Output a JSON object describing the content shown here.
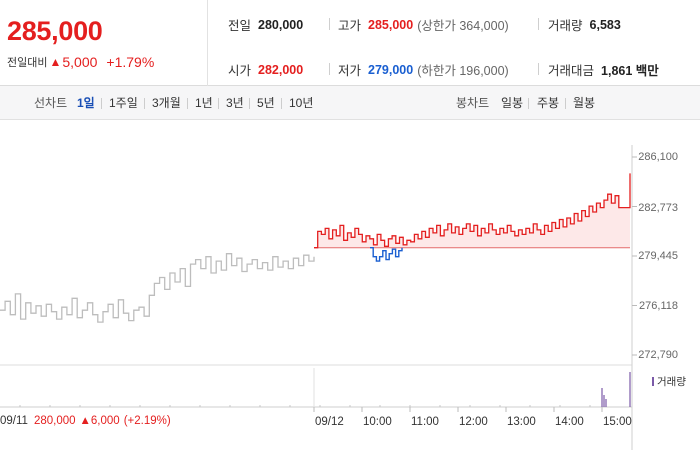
{
  "quote": {
    "current_price": "285,000",
    "change_label": "전일대비",
    "change_arrow": "▲",
    "change_value": "5,000",
    "change_percent": "+1.79%",
    "prev_close": {
      "label": "전일",
      "value": "280,000"
    },
    "high": {
      "label": "고가",
      "value": "285,000",
      "limit": "(상한가 364,000)"
    },
    "volume": {
      "label": "거래량",
      "value": "6,583"
    },
    "open": {
      "label": "시가",
      "value": "282,000"
    },
    "low": {
      "label": "저가",
      "value": "279,000",
      "limit": "(하한가 196,000)"
    },
    "trade_value": {
      "label": "거래대금",
      "value": "1,861 백만"
    }
  },
  "period_bar": {
    "line_label": "선차트",
    "line_options": [
      "1일",
      "1주일",
      "3개월",
      "1년",
      "3년",
      "5년",
      "10년"
    ],
    "active_line": "1일",
    "candle_label": "봉차트",
    "candle_options": [
      "일봉",
      "주봉",
      "월봉"
    ]
  },
  "colors": {
    "up": "#e41f1f",
    "down": "#1a5fd1",
    "prev_day": "#bdbdbd",
    "volume": "#7b5aa8"
  },
  "chart_data": {
    "type": "line",
    "title": "",
    "xlabel": "",
    "ylabel": "",
    "ylim": [
      272790,
      286100
    ],
    "y_ticks": [
      "286,100",
      "282,773",
      "279,445",
      "276,118",
      "272,790"
    ],
    "x_ticks": [
      "09/12",
      "10:00",
      "11:00",
      "12:00",
      "13:00",
      "14:00",
      "15:00"
    ],
    "baseline": 280000,
    "volume_legend": "거래량",
    "prev_day_footer": {
      "date": "09/11",
      "price": "280,000",
      "arrow": "▲",
      "change": "6,000",
      "percent": "(+2.19%)"
    },
    "series": [
      {
        "values": [
          275800,
          276400,
          275500,
          276900,
          275200,
          276300,
          275600,
          276100,
          275400,
          276200,
          275700,
          275200,
          276000,
          275500,
          276600,
          275300,
          275800,
          276300,
          275500,
          275000,
          275700,
          276200,
          275300,
          276500,
          275600,
          275100,
          275800,
          276000,
          275400,
          276800,
          277600,
          278000,
          277200,
          278300,
          277700,
          278600,
          277400,
          278900,
          279200,
          278600,
          279400,
          278300,
          279100,
          278500,
          279600,
          278800,
          279300,
          278400,
          278900,
          279200,
          278600,
          279000,
          278500,
          279400,
          278700,
          279100,
          278600,
          279300,
          278800,
          279500,
          279100,
          279400
        ]
      },
      {
        "values": [
          280000,
          281100,
          280900,
          281300,
          280600,
          281200,
          280800,
          281500,
          280500,
          281000,
          280700,
          281300,
          280900,
          280400,
          280800,
          280600,
          280200,
          280900,
          280500,
          280100,
          280600,
          280800,
          280300,
          280700,
          280200,
          280500,
          280400,
          280900,
          280600,
          281100,
          280700,
          281300,
          281000,
          281500,
          280800,
          281200,
          281600,
          281000,
          281400,
          280900,
          281300,
          281600,
          281100,
          281500,
          280800,
          281300,
          281000,
          281600,
          281200,
          280900,
          281300,
          281000,
          281500,
          281100,
          280800,
          281200,
          280900,
          281300,
          281000,
          281600,
          281200,
          280900,
          281500,
          281100,
          281700,
          281300,
          281900,
          281400,
          282000,
          281600,
          282300,
          281800,
          282500,
          282100,
          282800,
          282400,
          283000,
          282700,
          283200,
          283600,
          283000,
          283500,
          282700,
          282700,
          282700,
          285000
        ]
      },
      {
        "values": [
          280000,
          279400,
          279100,
          279400,
          279800,
          279200,
          279600,
          279900,
          279400,
          279800,
          280000
        ]
      }
    ]
  }
}
